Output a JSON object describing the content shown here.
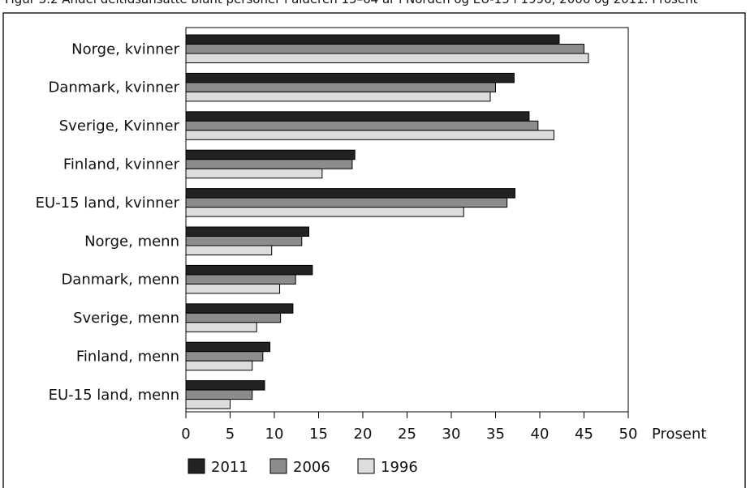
{
  "caption_fragment": "Figur 3.2 Andel deltidsansatte blant personer i alderen 15–64 år i Norden og EU-15 i 1996, 2006 og 2011. Prosent",
  "chart_data": {
    "type": "bar",
    "orientation": "horizontal",
    "xlabel": "Prosent",
    "xlim": [
      0,
      50
    ],
    "xticks": [
      "0",
      "5",
      "10",
      "15",
      "20",
      "25",
      "30",
      "35",
      "40",
      "45",
      "50"
    ],
    "categories": [
      "Norge, kvinner",
      "Danmark, kvinner",
      "Sverige, Kvinner",
      "Finland, kvinner",
      "EU-15 land, kvinner",
      "Norge, menn",
      "Danmark, menn",
      "Sverige, menn",
      "Finland, menn",
      "EU-15 land, menn"
    ],
    "series": [
      {
        "name": "2011",
        "color": "#222222",
        "values": [
          42.2,
          37.1,
          38.8,
          19.1,
          37.2,
          13.9,
          14.3,
          12.1,
          9.5,
          8.9
        ]
      },
      {
        "name": "2006",
        "color": "#8c8c8c",
        "values": [
          45.0,
          35.0,
          39.8,
          18.8,
          36.3,
          13.1,
          12.4,
          10.7,
          8.7,
          7.5
        ]
      },
      {
        "name": "1996",
        "color": "#dddddd",
        "values": [
          45.5,
          34.4,
          41.6,
          15.4,
          31.4,
          9.7,
          10.6,
          8.0,
          7.5,
          5.0
        ]
      }
    ],
    "grid": false,
    "legend_position": "bottom-left"
  }
}
